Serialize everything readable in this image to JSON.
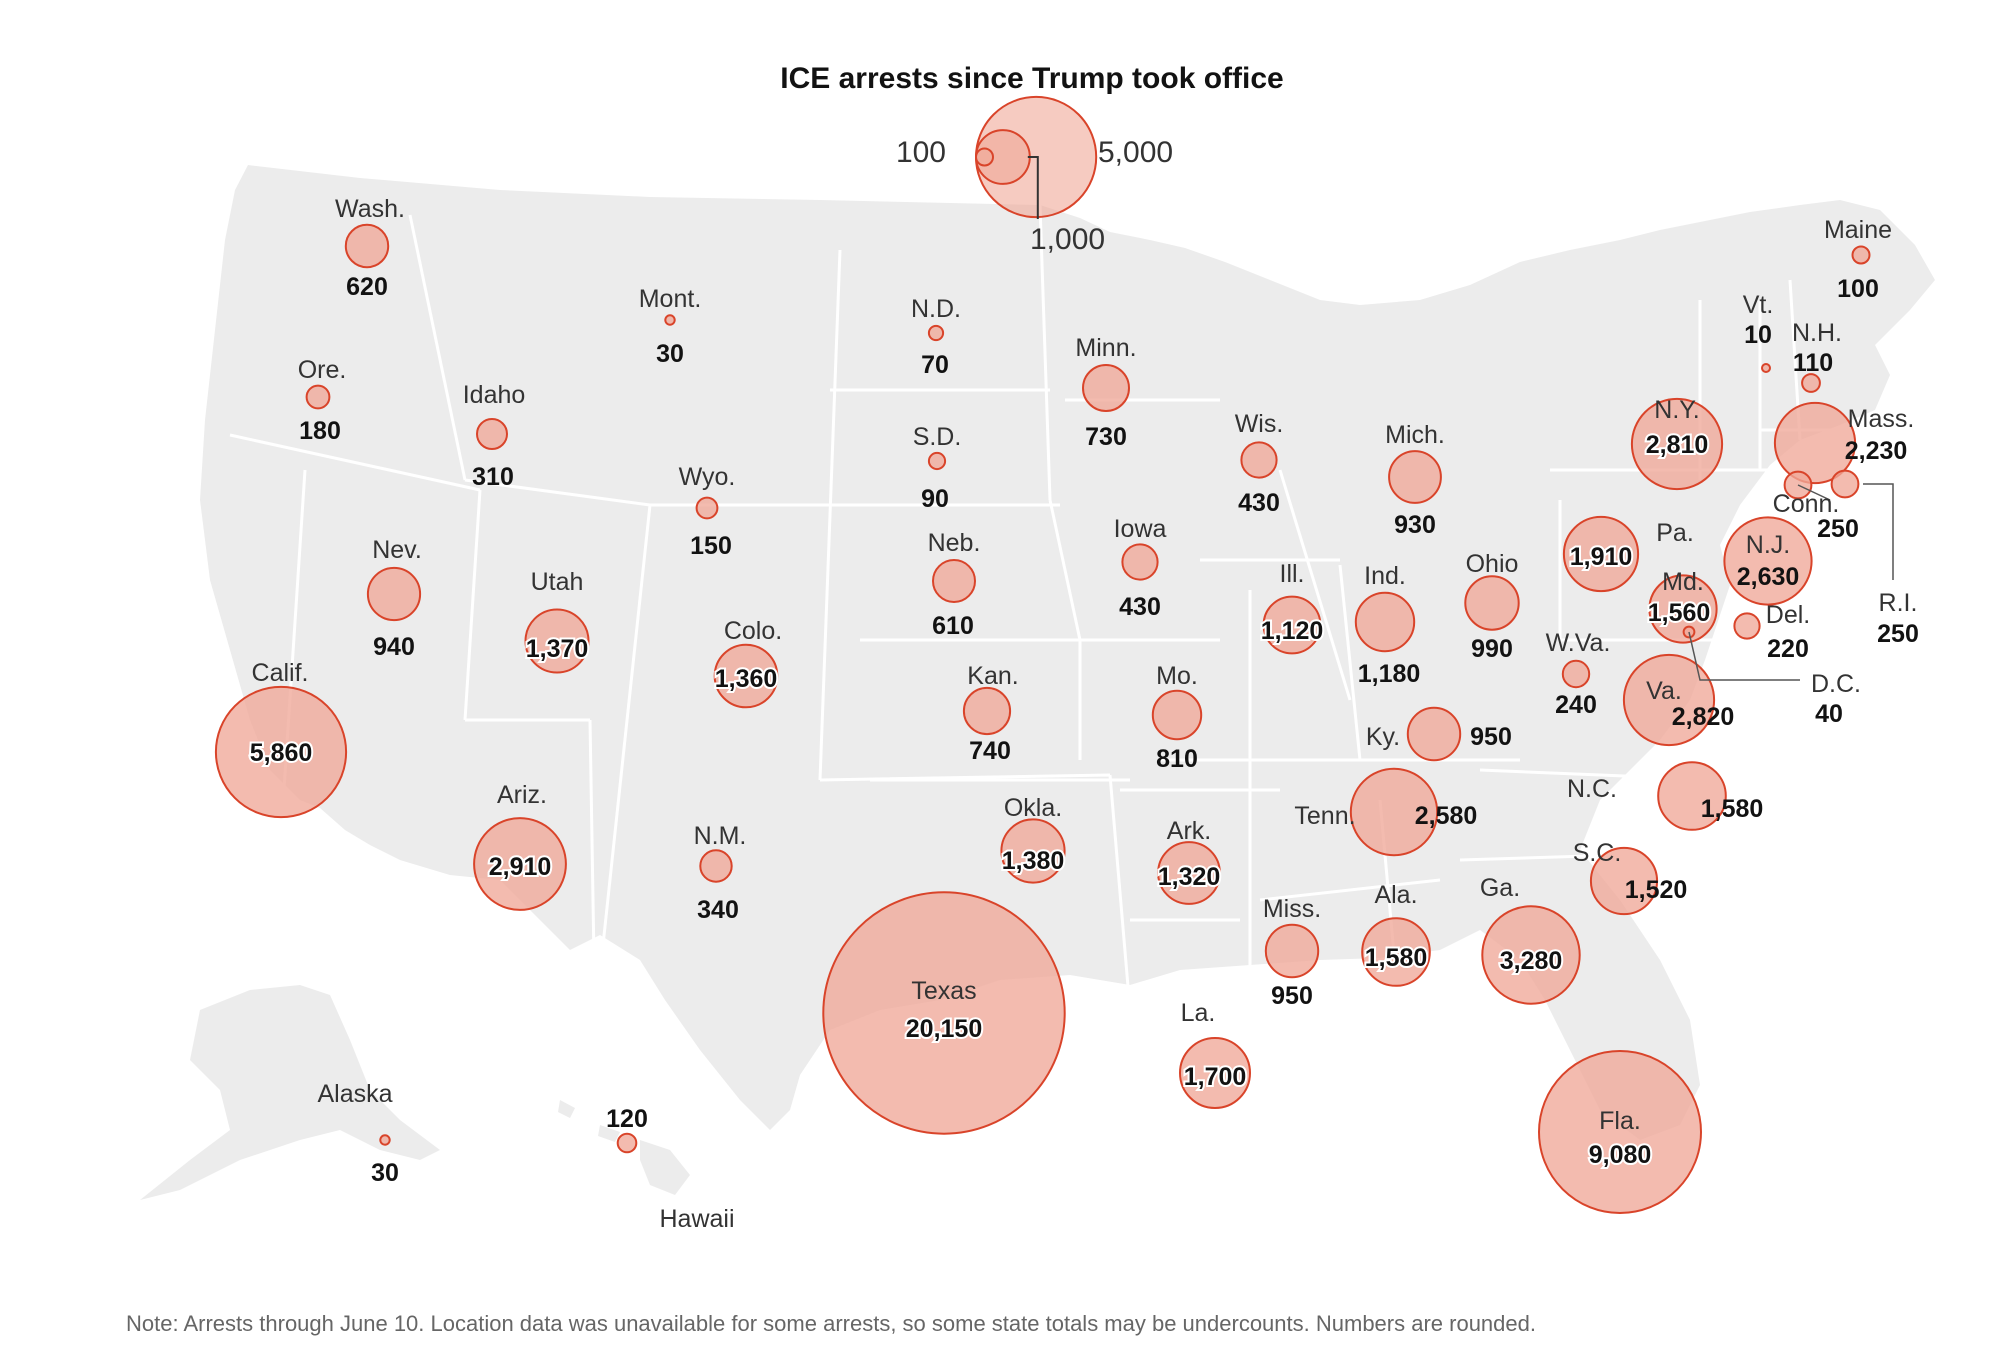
{
  "title": "ICE arrests since Trump took office",
  "legend": {
    "small_label": "100",
    "medium_label": "1,000",
    "large_label": "5,000",
    "small_value": 100,
    "medium_value": 1000,
    "large_value": 5000
  },
  "note": "Note: Arrests through June 10. Location data was unavailable for some arrests, so some state totals may be undercounts. Numbers are rounded.",
  "colors": {
    "land": "#ececec",
    "border": "#ffffff",
    "bubble_fill": "#f0a898",
    "bubble_stroke": "#d9442a",
    "leader": "#555555"
  },
  "states": [
    {
      "id": "wa",
      "name": "Wash.",
      "value": 620,
      "value_label": "620"
    },
    {
      "id": "or",
      "name": "Ore.",
      "value": 180,
      "value_label": "180"
    },
    {
      "id": "ca",
      "name": "Calif.",
      "value": 5860,
      "value_label": "5,860"
    },
    {
      "id": "id",
      "name": "Idaho",
      "value": 310,
      "value_label": "310"
    },
    {
      "id": "nv",
      "name": "Nev.",
      "value": 940,
      "value_label": "940"
    },
    {
      "id": "mt",
      "name": "Mont.",
      "value": 30,
      "value_label": "30"
    },
    {
      "id": "wy",
      "name": "Wyo.",
      "value": 150,
      "value_label": "150"
    },
    {
      "id": "ut",
      "name": "Utah",
      "value": 1370,
      "value_label": "1,370"
    },
    {
      "id": "az",
      "name": "Ariz.",
      "value": 2910,
      "value_label": "2,910"
    },
    {
      "id": "co",
      "name": "Colo.",
      "value": 1360,
      "value_label": "1,360"
    },
    {
      "id": "nm",
      "name": "N.M.",
      "value": 340,
      "value_label": "340"
    },
    {
      "id": "nd",
      "name": "N.D.",
      "value": 70,
      "value_label": "70"
    },
    {
      "id": "sd",
      "name": "S.D.",
      "value": 90,
      "value_label": "90"
    },
    {
      "id": "ne",
      "name": "Neb.",
      "value": 610,
      "value_label": "610"
    },
    {
      "id": "ks",
      "name": "Kan.",
      "value": 740,
      "value_label": "740"
    },
    {
      "id": "ok",
      "name": "Okla.",
      "value": 1380,
      "value_label": "1,380"
    },
    {
      "id": "tx",
      "name": "Texas",
      "value": 20150,
      "value_label": "20,150"
    },
    {
      "id": "mn",
      "name": "Minn.",
      "value": 730,
      "value_label": "730"
    },
    {
      "id": "ia",
      "name": "Iowa",
      "value": 430,
      "value_label": "430"
    },
    {
      "id": "mo",
      "name": "Mo.",
      "value": 810,
      "value_label": "810"
    },
    {
      "id": "ar",
      "name": "Ark.",
      "value": 1320,
      "value_label": "1,320"
    },
    {
      "id": "la",
      "name": "La.",
      "value": 1700,
      "value_label": "1,700"
    },
    {
      "id": "wi",
      "name": "Wis.",
      "value": 430,
      "value_label": "430"
    },
    {
      "id": "il",
      "name": "Ill.",
      "value": 1120,
      "value_label": "1,120"
    },
    {
      "id": "mi",
      "name": "Mich.",
      "value": 930,
      "value_label": "930"
    },
    {
      "id": "in",
      "name": "Ind.",
      "value": 1180,
      "value_label": "1,180"
    },
    {
      "id": "oh",
      "name": "Ohio",
      "value": 990,
      "value_label": "990"
    },
    {
      "id": "ky",
      "name": "Ky.",
      "value": 950,
      "value_label": "950"
    },
    {
      "id": "tn",
      "name": "Tenn.",
      "value": 2580,
      "value_label": "2,580"
    },
    {
      "id": "ms",
      "name": "Miss.",
      "value": 950,
      "value_label": "950"
    },
    {
      "id": "al",
      "name": "Ala.",
      "value": 1580,
      "value_label": "1,580"
    },
    {
      "id": "ga",
      "name": "Ga.",
      "value": 3280,
      "value_label": "3,280"
    },
    {
      "id": "fl",
      "name": "Fla.",
      "value": 9080,
      "value_label": "9,080"
    },
    {
      "id": "sc",
      "name": "S.C.",
      "value": 1520,
      "value_label": "1,520"
    },
    {
      "id": "nc",
      "name": "N.C.",
      "value": 1580,
      "value_label": "1,580"
    },
    {
      "id": "va",
      "name": "Va.",
      "value": 2820,
      "value_label": "2,820"
    },
    {
      "id": "wv",
      "name": "W.Va.",
      "value": 240,
      "value_label": "240"
    },
    {
      "id": "md",
      "name": "Md.",
      "value": 1560,
      "value_label": "1,560"
    },
    {
      "id": "de",
      "name": "Del.",
      "value": 220,
      "value_label": "220"
    },
    {
      "id": "dc",
      "name": "D.C.",
      "value": 40,
      "value_label": "40"
    },
    {
      "id": "pa",
      "name": "Pa.",
      "value": 1910,
      "value_label": "1,910"
    },
    {
      "id": "nj",
      "name": "N.J.",
      "value": 2630,
      "value_label": "2,630"
    },
    {
      "id": "ny",
      "name": "N.Y.",
      "value": 2810,
      "value_label": "2,810"
    },
    {
      "id": "ct",
      "name": "Conn.",
      "value": 250,
      "value_label": "250"
    },
    {
      "id": "ri",
      "name": "R.I.",
      "value": 250,
      "value_label": "250"
    },
    {
      "id": "ma",
      "name": "Mass.",
      "value": 2230,
      "value_label": "2,230"
    },
    {
      "id": "vt",
      "name": "Vt.",
      "value": 10,
      "value_label": "10"
    },
    {
      "id": "nh",
      "name": "N.H.",
      "value": 110,
      "value_label": "110"
    },
    {
      "id": "me",
      "name": "Maine",
      "value": 100,
      "value_label": "100"
    },
    {
      "id": "ak",
      "name": "Alaska",
      "value": 30,
      "value_label": "30"
    },
    {
      "id": "hi",
      "name": "Hawaii",
      "value": 120,
      "value_label": "120"
    }
  ]
}
